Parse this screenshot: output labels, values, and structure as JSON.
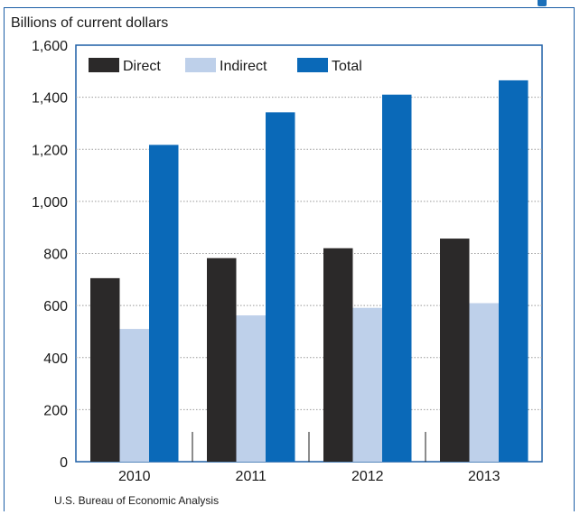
{
  "chart_data": {
    "type": "bar",
    "ylabel": "Billions of current dollars",
    "categories": [
      "2010",
      "2011",
      "2012",
      "2013"
    ],
    "series": [
      {
        "name": "Direct",
        "values": [
          705,
          782,
          820,
          857
        ],
        "color": "#2b2929"
      },
      {
        "name": "Indirect",
        "values": [
          510,
          562,
          591,
          609
        ],
        "color": "#bed0ea"
      },
      {
        "name": "Total",
        "values": [
          1217,
          1342,
          1410,
          1465
        ],
        "color": "#0a69b8"
      }
    ],
    "ylim": [
      0,
      1600
    ],
    "yticks": [
      0,
      200,
      400,
      600,
      800,
      1000,
      1200,
      1400,
      1600
    ],
    "ytick_labels": [
      "0",
      "200",
      "400",
      "600",
      "800",
      "1,000",
      "1,200",
      "1,400",
      "1,600"
    ],
    "grid": true,
    "legend_position": "top-left",
    "source": "U.S. Bureau of Economic Analysis"
  }
}
